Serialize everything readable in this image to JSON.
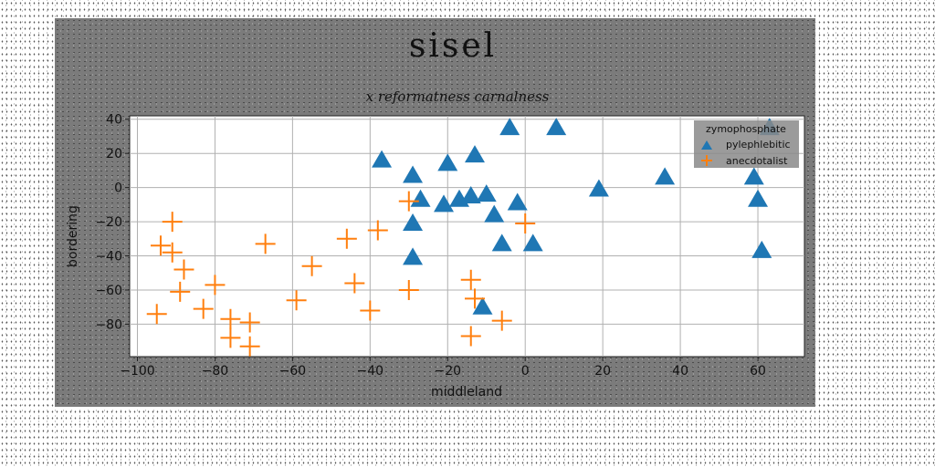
{
  "chart_data": {
    "type": "scatter",
    "title": "sisel",
    "subtitle": "x reformatness carnalness",
    "xlabel": "middleland",
    "ylabel": "bordering",
    "xlim": [
      -102,
      72
    ],
    "ylim": [
      -99,
      42
    ],
    "xticks": [
      -100,
      -80,
      -60,
      -40,
      -20,
      0,
      20,
      40,
      60
    ],
    "yticks": [
      40,
      20,
      0,
      -20,
      -40,
      -60,
      -80
    ],
    "xtick_labels": [
      "−100",
      "−80",
      "−60",
      "−40",
      "−20",
      "0",
      "20",
      "40",
      "60"
    ],
    "ytick_labels": [
      "40",
      "20",
      "0",
      "−20",
      "−40",
      "−60",
      "−80"
    ],
    "grid": true,
    "legend": {
      "title": "zymophosphate",
      "position": "top-right"
    },
    "series": [
      {
        "name": "pylephlebitic",
        "marker": "triangle",
        "color": "#1f77b4",
        "points": [
          [
            -4,
            35
          ],
          [
            8,
            35
          ],
          [
            63,
            35
          ],
          [
            -37,
            16
          ],
          [
            -29,
            7
          ],
          [
            -20,
            14
          ],
          [
            -13,
            19
          ],
          [
            -27,
            -7
          ],
          [
            -21,
            -10
          ],
          [
            -17,
            -7
          ],
          [
            -14,
            -5
          ],
          [
            -10,
            -4
          ],
          [
            -8,
            -16
          ],
          [
            -2,
            -9
          ],
          [
            -29,
            -21
          ],
          [
            19,
            -1
          ],
          [
            36,
            6
          ],
          [
            59,
            6
          ],
          [
            60,
            -7
          ],
          [
            -6,
            -33
          ],
          [
            2,
            -33
          ],
          [
            61,
            -37
          ],
          [
            -29,
            -41
          ],
          [
            -11,
            -70
          ]
        ]
      },
      {
        "name": "anecdotalist",
        "marker": "plus",
        "color": "#ff7f0e",
        "points": [
          [
            -91,
            -20
          ],
          [
            -94,
            -34
          ],
          [
            -91,
            -38
          ],
          [
            -88,
            -48
          ],
          [
            -89,
            -61
          ],
          [
            -80,
            -57
          ],
          [
            -83,
            -71
          ],
          [
            -95,
            -74
          ],
          [
            -76,
            -77
          ],
          [
            -71,
            -79
          ],
          [
            -76,
            -88
          ],
          [
            -71,
            -93
          ],
          [
            -67,
            -33
          ],
          [
            -55,
            -46
          ],
          [
            -59,
            -66
          ],
          [
            -46,
            -30
          ],
          [
            -44,
            -56
          ],
          [
            -38,
            -25
          ],
          [
            -40,
            -72
          ],
          [
            -30,
            -8
          ],
          [
            -30,
            -60
          ],
          [
            -14,
            -54
          ],
          [
            -13,
            -65
          ],
          [
            -14,
            -87
          ],
          [
            -6,
            -78
          ],
          [
            0,
            -21
          ]
        ]
      }
    ]
  }
}
